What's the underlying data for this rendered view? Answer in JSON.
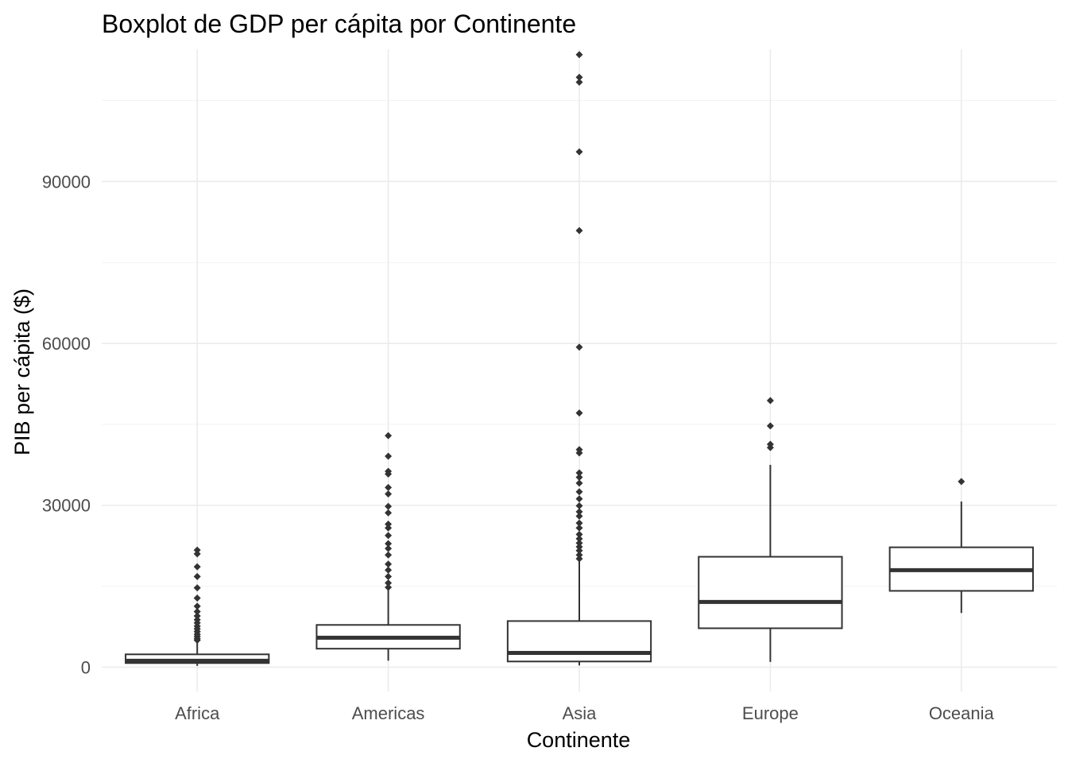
{
  "chart_data": {
    "type": "boxplot",
    "title": "Boxplot de GDP per cápita por Continente",
    "xlabel": "Continente",
    "ylabel": "PIB per cápita ($)",
    "ylim": [
      -4500,
      114500
    ],
    "yticks": [
      0,
      30000,
      60000,
      90000
    ],
    "ytick_labels": [
      "0",
      "30000",
      "60000",
      "90000"
    ],
    "grid": true,
    "categories": [
      "Africa",
      "Americas",
      "Asia",
      "Europe",
      "Oceania"
    ],
    "boxes": [
      {
        "category": "Africa",
        "whisker_low": 241,
        "q1": 762,
        "median": 1192,
        "q3": 2378,
        "whisker_high": 4800,
        "outliers": [
          5000,
          5300,
          5700,
          6100,
          6600,
          7100,
          7600,
          8200,
          8800,
          9500,
          10300,
          11300,
          12800,
          14700,
          16800,
          18600,
          21000,
          21700
        ]
      },
      {
        "category": "Americas",
        "whisker_low": 1202,
        "q1": 3428,
        "median": 5466,
        "q3": 7830,
        "whisker_high": 14600,
        "outliers": [
          14800,
          15600,
          16800,
          18000,
          19100,
          20800,
          22000,
          22900,
          24400,
          25800,
          26500,
          28600,
          29800,
          32100,
          33300,
          35800,
          36300,
          39100,
          42900
        ]
      },
      {
        "category": "Asia",
        "whisker_low": 331,
        "q1": 1057,
        "median": 2647,
        "q3": 8549,
        "whisker_high": 19800,
        "outliers": [
          20100,
          20800,
          21600,
          22300,
          23000,
          23800,
          24600,
          25800,
          26700,
          28000,
          28800,
          29900,
          31200,
          32500,
          34100,
          35200,
          36000,
          39700,
          40300,
          47100,
          59300,
          80900,
          95500,
          108400,
          109300,
          113500
        ]
      },
      {
        "category": "Europe",
        "whisker_low": 974,
        "q1": 7213,
        "median": 12082,
        "q3": 20461,
        "whisker_high": 37500,
        "outliers": [
          40700,
          41300,
          44700,
          49400
        ]
      },
      {
        "category": "Oceania",
        "whisker_low": 10040,
        "q1": 14142,
        "median": 17983,
        "q3": 22214,
        "whisker_high": 30700,
        "outliers": [
          34400
        ]
      }
    ],
    "colors": {
      "box_stroke": "#333333",
      "box_fill": "#ffffff",
      "grid": "#ebebeb",
      "tick_text": "#4d4d4d",
      "title_text": "#000000"
    }
  }
}
